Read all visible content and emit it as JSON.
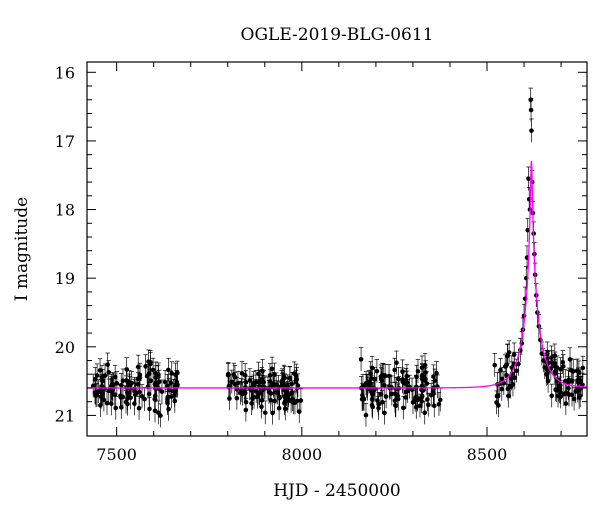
{
  "chart_data": {
    "type": "scatter",
    "title": "OGLE-2019-BLG-0611",
    "xlabel": "HJD - 2450000",
    "ylabel": "I magnitude",
    "xlim": [
      7420,
      8770
    ],
    "ylim": [
      21.3,
      15.85
    ],
    "y_inverted": true,
    "x_ticks": [
      7500,
      8000,
      8500
    ],
    "y_ticks": [
      16,
      17,
      18,
      19,
      20,
      21
    ],
    "colors": {
      "points": "#000000",
      "model": "#ff00ff",
      "axes": "#000000"
    },
    "baseline_magnitude": 20.6,
    "peak": {
      "hjd": 8620,
      "model_magnitude": 17.2,
      "brightest_observed_magnitude": 16.4
    },
    "observing_seasons": [
      {
        "start": 7435,
        "end": 7665
      },
      {
        "start": 7800,
        "end": 8005
      },
      {
        "start": 8160,
        "end": 8375
      },
      {
        "start": 8520,
        "end": 8760
      }
    ],
    "series": [
      {
        "kind": "scatter_with_errorbars",
        "errorbar_mag": 0.17,
        "points": [
          [
            8618,
            16.4
          ],
          [
            8619,
            16.55
          ],
          [
            8620,
            16.85
          ],
          [
            8612,
            17.55
          ],
          [
            8614,
            17.85
          ],
          [
            8622,
            17.6
          ],
          [
            8616,
            18.0
          ],
          [
            8624,
            18.05
          ],
          [
            8610,
            18.3
          ],
          [
            8626,
            18.35
          ],
          [
            8608,
            18.7
          ],
          [
            8628,
            18.65
          ],
          [
            8606,
            19.0
          ],
          [
            8630,
            18.95
          ],
          [
            8603,
            19.3
          ],
          [
            8633,
            19.25
          ],
          [
            8600,
            19.55
          ],
          [
            8636,
            19.5
          ],
          [
            8597,
            19.75
          ],
          [
            8640,
            19.7
          ],
          [
            8594,
            19.95
          ],
          [
            8644,
            19.9
          ],
          [
            8590,
            20.05
          ],
          [
            8648,
            20.1
          ],
          [
            8585,
            20.25
          ],
          [
            8652,
            20.2
          ],
          [
            8580,
            20.35
          ],
          [
            8656,
            20.3
          ],
          [
            8575,
            20.45
          ],
          [
            8660,
            20.4
          ],
          [
            8570,
            20.55
          ],
          [
            8665,
            20.5
          ]
        ]
      },
      {
        "kind": "model_curve",
        "name": "",
        "function": "baseline - 2.5*log10(A(u)), u = sqrt(u0^2 + ((t - t0)/tE)^2)",
        "t0": 8620,
        "u0": 0.0475,
        "tE": 45
      }
    ]
  }
}
